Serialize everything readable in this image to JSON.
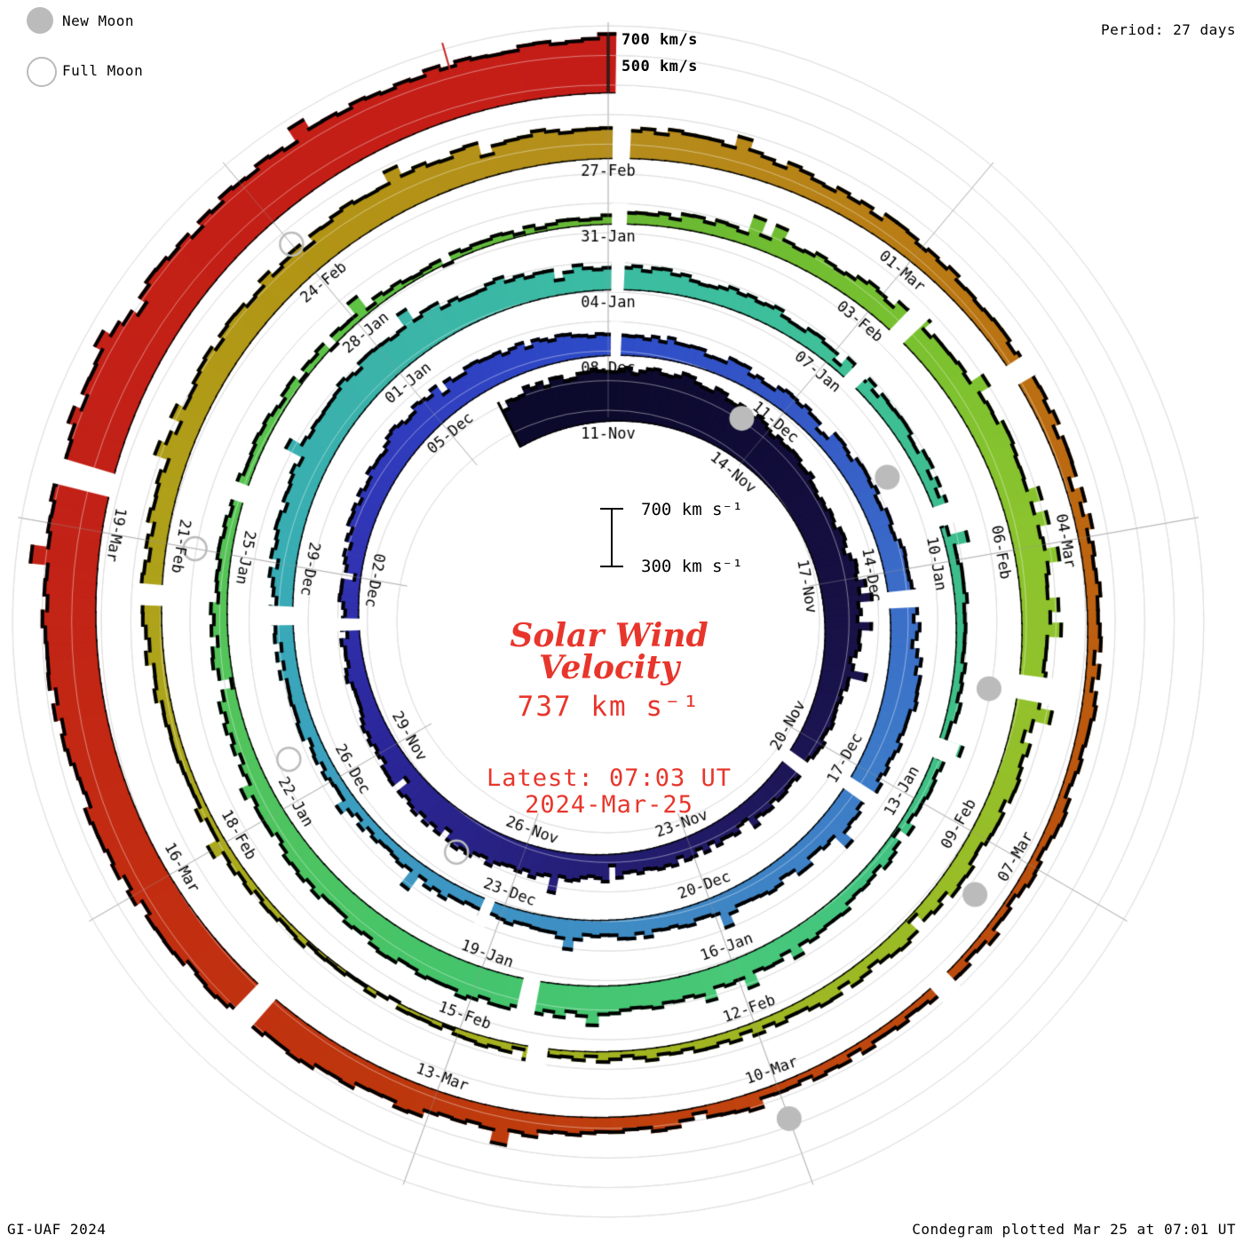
{
  "page": {
    "background": "#FFFFFF"
  },
  "legend": {
    "new_moon_label": "New Moon",
    "full_moon_label": "Full Moon",
    "moon_color": "#BBBBBB"
  },
  "header": {
    "period_label": "Period: 27 days"
  },
  "footer": {
    "credit": "GI-UAF 2024",
    "plotted": "Condegram plotted Mar 25 at 07:01 UT"
  },
  "outer_scale": {
    "top_label": "700 km/s",
    "bottom_label": "500 km/s"
  },
  "center": {
    "scale_top": "700 km s⁻¹",
    "scale_bottom": "300 km s⁻¹",
    "title_line1": "Solar Wind",
    "title_line2": "Velocity",
    "current_value": "737 km s⁻¹",
    "latest_line1": "Latest: 07:03 UT",
    "latest_line2": "2024-Mar-25",
    "text_color": "#E8362C"
  },
  "chart_data": {
    "type": "spiral-condegram",
    "title": "Solar Wind Velocity",
    "period_days": 27,
    "rotations": 5,
    "start_date": "2023-Nov-11",
    "end_date": "2024-Mar-25",
    "latest_value_kms": 737,
    "baseline_velocity": 300,
    "reference_velocities": [
      300,
      500,
      700
    ],
    "date_labels": [
      "11-Nov",
      "14-Nov",
      "17-Nov",
      "20-Nov",
      "23-Nov",
      "26-Nov",
      "29-Nov",
      "02-Dec",
      "05-Dec",
      "08-Dec",
      "11-Dec",
      "14-Dec",
      "17-Dec",
      "20-Dec",
      "23-Dec",
      "26-Dec",
      "29-Dec",
      "01-Jan",
      "04-Jan",
      "07-Jan",
      "10-Jan",
      "13-Jan",
      "16-Jan",
      "19-Jan",
      "22-Jan",
      "25-Jan",
      "28-Jan",
      "31-Jan",
      "03-Feb",
      "06-Feb",
      "09-Feb",
      "12-Feb",
      "15-Feb",
      "18-Feb",
      "21-Feb",
      "24-Feb",
      "27-Feb",
      "01-Mar",
      "04-Mar",
      "07-Mar",
      "10-Mar",
      "13-Mar",
      "16-Mar",
      "19-Mar"
    ],
    "label_step_days": 3,
    "velocity_daily": [
      680,
      720,
      690,
      640,
      600,
      570,
      610,
      560,
      520,
      490,
      470,
      450,
      460,
      480,
      510,
      540,
      560,
      520,
      480,
      450,
      430,
      450,
      480,
      520,
      550,
      530,
      500,
      480,
      460,
      440,
      430,
      450,
      470,
      500,
      530,
      550,
      520,
      490,
      470,
      460,
      450,
      440,
      430,
      420,
      410,
      400,
      420,
      450,
      490,
      530,
      560,
      580,
      550,
      510,
      480,
      460,
      440,
      430,
      420,
      410,
      400,
      390,
      380,
      390,
      420,
      450,
      480,
      510,
      540,
      560,
      530,
      500,
      470,
      440,
      420,
      400,
      390,
      380,
      370,
      360,
      350,
      380,
      410,
      450,
      490,
      530,
      560,
      540,
      510,
      480,
      450,
      430,
      410,
      390,
      380,
      370,
      360,
      350,
      360,
      380,
      400,
      430,
      460,
      490,
      520,
      550,
      580,
      560,
      530,
      500,
      480,
      460,
      440,
      420,
      410,
      400,
      390,
      380,
      370,
      380,
      400,
      430,
      470,
      510,
      550,
      590,
      630,
      660,
      690,
      710,
      730,
      720,
      700,
      710,
      725,
      737
    ],
    "data_gap_days": [
      [
        9.4,
        9.65
      ],
      [
        20.1,
        20.3
      ],
      [
        27.04,
        27.2
      ],
      [
        33.3,
        33.55
      ],
      [
        36.2,
        36.4
      ],
      [
        42.15,
        42.3
      ],
      [
        47.2,
        47.45
      ],
      [
        54.04,
        54.2
      ],
      [
        57.3,
        57.5
      ],
      [
        59.3,
        59.55
      ],
      [
        62.2,
        62.45
      ],
      [
        68.3,
        68.5
      ],
      [
        75.6,
        75.8
      ],
      [
        81.04,
        81.2
      ],
      [
        84.3,
        84.5
      ],
      [
        88.3,
        88.55
      ],
      [
        95.1,
        95.3
      ],
      [
        101.4,
        101.6
      ],
      [
        108.04,
        108.2
      ],
      [
        112.3,
        112.5
      ],
      [
        118.2,
        118.4
      ],
      [
        124.6,
        124.8
      ],
      [
        129.3,
        129.5
      ]
    ],
    "new_moon_days": [
      2.5,
      31.7,
      61.5,
      90.5,
      120
    ],
    "full_moon_days": [
      16,
      45.5,
      75,
      105
    ],
    "event_marker_day": 133.8,
    "color_stops": [
      [
        0.0,
        "#0C0A2C"
      ],
      [
        0.022,
        "#100C38"
      ],
      [
        0.044,
        "#161042"
      ],
      [
        0.067,
        "#1B1552"
      ],
      [
        0.089,
        "#221B68"
      ],
      [
        0.111,
        "#272180"
      ],
      [
        0.133,
        "#2B2698"
      ],
      [
        0.156,
        "#3133B2"
      ],
      [
        0.178,
        "#2F3FC0"
      ],
      [
        0.2,
        "#2E4CC8"
      ],
      [
        0.222,
        "#3558C6"
      ],
      [
        0.244,
        "#3A6BC8"
      ],
      [
        0.267,
        "#3D7CC8"
      ],
      [
        0.289,
        "#3F86C4"
      ],
      [
        0.311,
        "#3E93C4"
      ],
      [
        0.333,
        "#3BA0C0"
      ],
      [
        0.356,
        "#38ADB4"
      ],
      [
        0.378,
        "#3BB4A8"
      ],
      [
        0.4,
        "#3BBCA2"
      ],
      [
        0.422,
        "#3FC098"
      ],
      [
        0.444,
        "#3DBD8C"
      ],
      [
        0.467,
        "#3FC284"
      ],
      [
        0.489,
        "#48C878"
      ],
      [
        0.511,
        "#44C46C"
      ],
      [
        0.533,
        "#4FC45F"
      ],
      [
        0.556,
        "#55C455"
      ],
      [
        0.578,
        "#5EC244"
      ],
      [
        0.6,
        "#68B834"
      ],
      [
        0.622,
        "#76C030"
      ],
      [
        0.644,
        "#8CC42E"
      ],
      [
        0.667,
        "#97BE28"
      ],
      [
        0.689,
        "#9FB622"
      ],
      [
        0.711,
        "#A6B01E"
      ],
      [
        0.733,
        "#AAAA1C"
      ],
      [
        0.756,
        "#AFA01A"
      ],
      [
        0.778,
        "#B29414"
      ],
      [
        0.8,
        "#B58E1C"
      ],
      [
        0.822,
        "#B97B14"
      ],
      [
        0.844,
        "#BD6511"
      ],
      [
        0.867,
        "#BB4F0E"
      ],
      [
        0.889,
        "#C1440F"
      ],
      [
        0.911,
        "#BD380D"
      ],
      [
        0.933,
        "#C22D11"
      ],
      [
        0.956,
        "#C22117"
      ],
      [
        0.978,
        "#C41F16"
      ],
      [
        1.0,
        "#C41D18"
      ]
    ],
    "grid_color": "#C6C6C6",
    "moon_color": "#BBBBBB",
    "event_color": "#CC2020"
  }
}
